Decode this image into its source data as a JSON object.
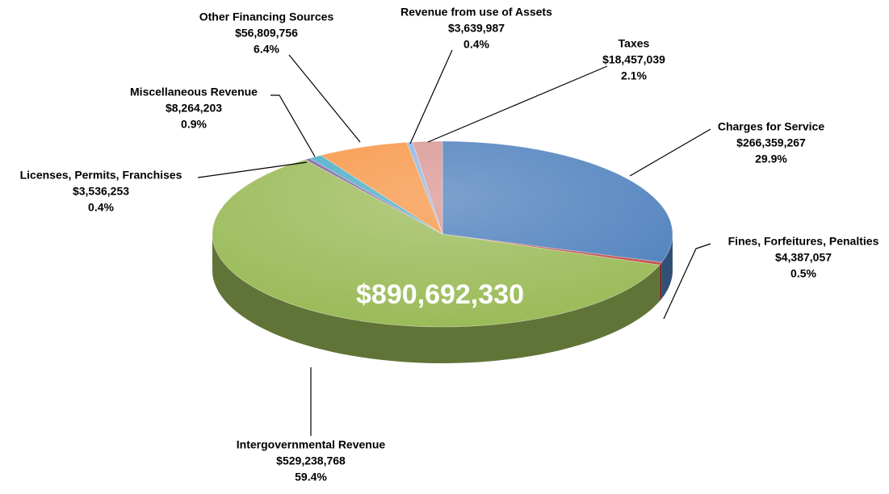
{
  "chart_data": {
    "type": "pie",
    "center_label": "$890,692,330",
    "categories": [
      "Charges for Service",
      "Fines, Forfeitures, Penalties",
      "Intergovernmental Revenue",
      "Licenses, Permits, Franchises",
      "Miscellaneous Revenue",
      "Other Financing Sources",
      "Revenue from use of Assets",
      "Taxes"
    ],
    "values": [
      266359267,
      4387057,
      529238768,
      3536253,
      8264203,
      56809756,
      3639987,
      18457039
    ],
    "value_labels": [
      "$266,359,267",
      "$4,387,057",
      "$529,238,768",
      "$3,536,253",
      "$8,264,203",
      "$56,809,756",
      "$3,639,987",
      "$18,457,039"
    ],
    "percent_labels": [
      "29.9%",
      "0.5%",
      "59.4%",
      "0.4%",
      "0.9%",
      "6.4%",
      "0.4%",
      "2.1%"
    ],
    "colors": [
      "#4f81bd",
      "#c0504d",
      "#9bbb59",
      "#8064a2",
      "#4bacc6",
      "#f79646",
      "#8fb4e3",
      "#d99694"
    ]
  }
}
